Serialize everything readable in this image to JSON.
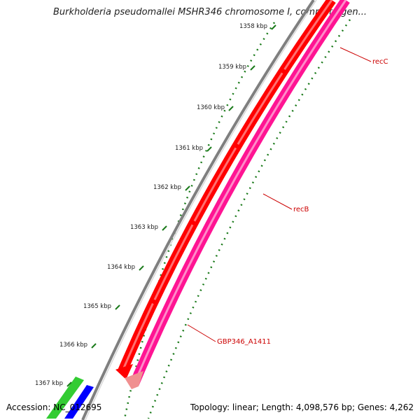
{
  "title": "Burkholderia pseudomallei MSHR346 chromosome I, complete gen...",
  "footer": {
    "accession": "Accession: NC_012695",
    "summary": "Topology: linear; Length: 4,098,576 bp; Genes: 4,262"
  },
  "ticks": [
    {
      "label": "1358 kbp",
      "kbp": 1358
    },
    {
      "label": "1359 kbp",
      "kbp": 1359
    },
    {
      "label": "1360 kbp",
      "kbp": 1360
    },
    {
      "label": "1361 kbp",
      "kbp": 1361
    },
    {
      "label": "1362 kbp",
      "kbp": 1362
    },
    {
      "label": "1363 kbp",
      "kbp": 1363
    },
    {
      "label": "1364 kbp",
      "kbp": 1364
    },
    {
      "label": "1365 kbp",
      "kbp": 1365
    },
    {
      "label": "1366 kbp",
      "kbp": 1366
    },
    {
      "label": "1367 kbp",
      "kbp": 1367
    }
  ],
  "genes": [
    {
      "name": "recC",
      "label": "recC"
    },
    {
      "name": "recB",
      "label": "recB"
    },
    {
      "name": "GBP346_A1411",
      "label": "GBP346_A1411"
    }
  ],
  "colors": {
    "backbone": "#7f7f7f",
    "gene_red": "#ff0000",
    "cds_pink": "#ff1493",
    "cds_pink_light": "#f09090",
    "label_red": "#cc0000",
    "tick_green": "#1a7a1a",
    "track_green": "#33cc33",
    "track_blue": "#0000ff"
  }
}
